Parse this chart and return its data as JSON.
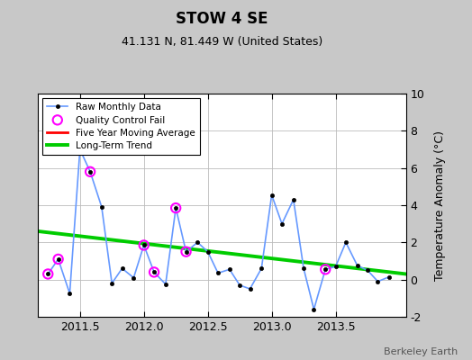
{
  "title": "STOW 4 SE",
  "subtitle": "41.131 N, 81.449 W (United States)",
  "ylabel": "Temperature Anomaly (°C)",
  "watermark": "Berkeley Earth",
  "xlim": [
    2011.17,
    2014.05
  ],
  "ylim": [
    -2,
    10
  ],
  "yticks": [
    -2,
    0,
    2,
    4,
    6,
    8,
    10
  ],
  "xticks": [
    2011.5,
    2012.0,
    2012.5,
    2013.0,
    2013.5
  ],
  "raw_x": [
    2011.25,
    2011.33,
    2011.42,
    2011.5,
    2011.58,
    2011.67,
    2011.75,
    2011.83,
    2011.92,
    2012.0,
    2012.08,
    2012.17,
    2012.25,
    2012.33,
    2012.42,
    2012.5,
    2012.58,
    2012.67,
    2012.75,
    2012.83,
    2012.92,
    2013.0,
    2013.08,
    2013.17,
    2013.25,
    2013.33,
    2013.42,
    2013.5,
    2013.58,
    2013.67,
    2013.75,
    2013.83,
    2013.92
  ],
  "raw_y": [
    0.3,
    1.1,
    -0.75,
    7.0,
    5.8,
    3.9,
    -0.2,
    0.6,
    0.1,
    1.85,
    0.4,
    -0.25,
    3.85,
    1.5,
    2.0,
    1.5,
    0.35,
    0.55,
    -0.3,
    -0.5,
    0.6,
    4.55,
    3.0,
    4.3,
    0.6,
    -1.6,
    0.55,
    0.7,
    2.0,
    0.75,
    0.5,
    -0.1,
    0.15
  ],
  "qc_fail_x": [
    2011.25,
    2011.33,
    2011.5,
    2011.58,
    2012.0,
    2012.08,
    2012.25,
    2012.33,
    2013.42
  ],
  "qc_fail_y": [
    0.3,
    1.1,
    7.0,
    5.8,
    1.85,
    0.4,
    3.85,
    1.5,
    0.55
  ],
  "trend_x": [
    2011.17,
    2014.05
  ],
  "trend_y": [
    2.6,
    0.3
  ],
  "bg_color": "#c8c8c8",
  "plot_bg_color": "#ffffff",
  "raw_line_color": "#6699ff",
  "raw_marker_color": "#000000",
  "qc_color": "#ff00ff",
  "trend_color": "#00cc00",
  "ma_color": "#ff0000",
  "grid_color": "#bbbbbb"
}
